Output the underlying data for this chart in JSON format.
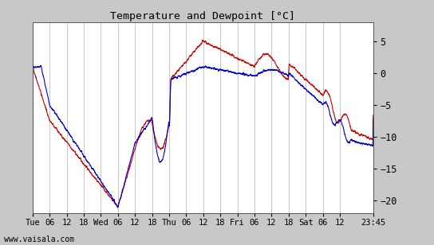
{
  "title": "Temperature and Dewpoint [°C]",
  "yticks": [
    5,
    0,
    -5,
    -10,
    -15,
    -20
  ],
  "ylim": [
    -22,
    8
  ],
  "bg_color": "#c8c8c8",
  "plot_bg_color": "#ffffff",
  "grid_color": "#b0b0b0",
  "temp_color": "#cc0000",
  "dewp_color": "#0000cc",
  "line_width": 0.8,
  "xtick_labels": [
    "Tue",
    "06",
    "12",
    "18",
    "Wed",
    "06",
    "12",
    "18",
    "Thu",
    "06",
    "12",
    "18",
    "Fri",
    "06",
    "12",
    "18",
    "Sat",
    "06",
    "12",
    "23:45"
  ],
  "xtick_pos": [
    0,
    6,
    12,
    18,
    24,
    30,
    36,
    42,
    48,
    54,
    60,
    66,
    72,
    78,
    84,
    90,
    96,
    102,
    108,
    119.75
  ],
  "xlim": [
    0,
    119.75
  ],
  "watermark": "www.vaisala.com",
  "font_family": "monospace"
}
